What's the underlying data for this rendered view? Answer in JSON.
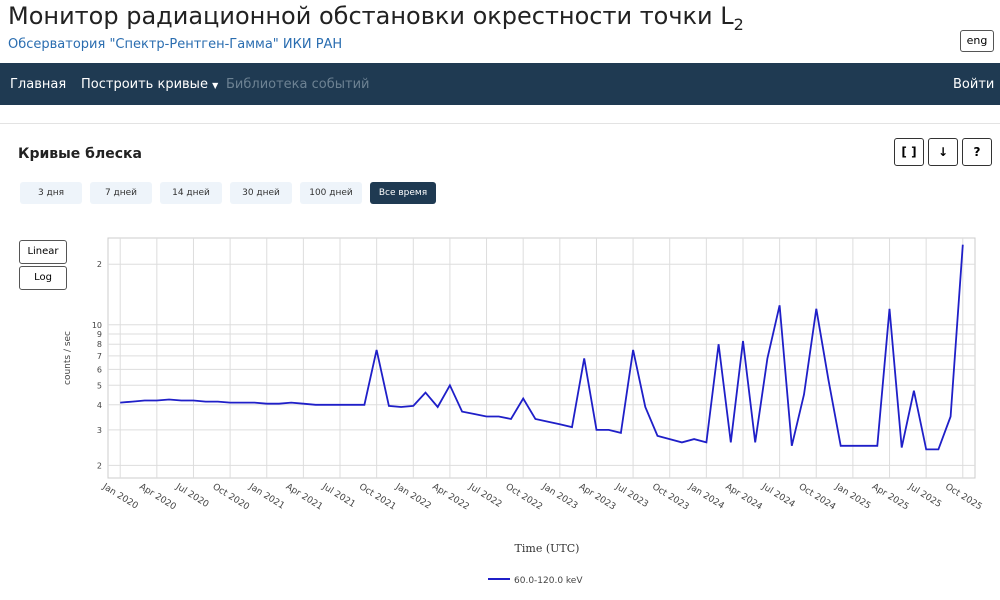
{
  "header": {
    "title": "Монитор радиационной обстановки окрестности точки L",
    "title_sub": "2",
    "subtitle": "Обсерватория \"Спектр-Рентген-Гамма\" ИКИ РАН",
    "lang_button": "eng"
  },
  "nav": {
    "items": [
      "Главная",
      "Построить кривые",
      "Библиотека событий"
    ],
    "login": "Войти"
  },
  "panel": {
    "title": "Кривые блеска",
    "tools": [
      "[ ]",
      "↓",
      "?"
    ],
    "ranges": [
      "3 дня",
      "7 дней",
      "14 дней",
      "30 дней",
      "100 дней",
      "Все время"
    ],
    "active_range": 5,
    "scales": [
      "Linear",
      "Log"
    ]
  },
  "chart_data": {
    "type": "line",
    "x_label": "Time (UTC)",
    "y_label": "counts / sec",
    "log_y": true,
    "grid": true,
    "xlim": [
      "2019-12",
      "2025-11"
    ],
    "xticks": [
      {
        "value": "2020-01",
        "label": "Jan 2020"
      },
      {
        "value": "2020-04",
        "label": "Apr 2020"
      },
      {
        "value": "2020-07",
        "label": "Jul 2020"
      },
      {
        "value": "2020-10",
        "label": "Oct 2020"
      },
      {
        "value": "2021-01",
        "label": "Jan 2021"
      },
      {
        "value": "2021-04",
        "label": "Apr 2021"
      },
      {
        "value": "2021-07",
        "label": "Jul 2021"
      },
      {
        "value": "2021-10",
        "label": "Oct 2021"
      },
      {
        "value": "2022-01",
        "label": "Jan 2022"
      },
      {
        "value": "2022-04",
        "label": "Apr 2022"
      },
      {
        "value": "2022-07",
        "label": "Jul 2022"
      },
      {
        "value": "2022-10",
        "label": "Oct 2022"
      },
      {
        "value": "2023-01",
        "label": "Jan 2023"
      },
      {
        "value": "2023-04",
        "label": "Apr 2023"
      },
      {
        "value": "2023-07",
        "label": "Jul 2023"
      },
      {
        "value": "2023-10",
        "label": "Oct 2023"
      },
      {
        "value": "2024-01",
        "label": "Jan 2024"
      },
      {
        "value": "2024-04",
        "label": "Apr 2024"
      },
      {
        "value": "2024-07",
        "label": "Jul 2024"
      },
      {
        "value": "2024-10",
        "label": "Oct 2024"
      },
      {
        "value": "2025-01",
        "label": "Jan 2025"
      },
      {
        "value": "2025-04",
        "label": "Apr 2025"
      },
      {
        "value": "2025-07",
        "label": "Jul 2025"
      },
      {
        "value": "2025-10",
        "label": "Oct 2025"
      }
    ],
    "ylim": [
      1.73,
      27
    ],
    "yticks": [
      2,
      3,
      4,
      5,
      6,
      7,
      8,
      9,
      10,
      {
        "value": 20,
        "label": "2"
      }
    ],
    "x": [
      "2020-01",
      "2020-02",
      "2020-03",
      "2020-04",
      "2020-05",
      "2020-06",
      "2020-07",
      "2020-08",
      "2020-09",
      "2020-10",
      "2020-11",
      "2020-12",
      "2021-01",
      "2021-02",
      "2021-03",
      "2021-04",
      "2021-05",
      "2021-06",
      "2021-07",
      "2021-08",
      "2021-09",
      "2021-10",
      "2021-11",
      "2021-12",
      "2022-01",
      "2022-02",
      "2022-03",
      "2022-04",
      "2022-05",
      "2022-06",
      "2022-07",
      "2022-08",
      "2022-09",
      "2022-10",
      "2022-11",
      "2022-12",
      "2023-01",
      "2023-02",
      "2023-03",
      "2023-04",
      "2023-05",
      "2023-06",
      "2023-07",
      "2023-08",
      "2023-09",
      "2023-10",
      "2023-11",
      "2023-12",
      "2024-01",
      "2024-02",
      "2024-03",
      "2024-04",
      "2024-05",
      "2024-06",
      "2024-07",
      "2024-08",
      "2024-09",
      "2024-10",
      "2024-11",
      "2024-12",
      "2025-01",
      "2025-02",
      "2025-03",
      "2025-04",
      "2025-05",
      "2025-06",
      "2025-07",
      "2025-08",
      "2025-09",
      "2025-10"
    ],
    "series": [
      {
        "name": "60.0-120.0 keV",
        "color": "#1f1fc8",
        "values": [
          4.1,
          4.15,
          4.2,
          4.2,
          4.25,
          4.2,
          4.2,
          4.15,
          4.15,
          4.1,
          4.1,
          4.1,
          4.05,
          4.05,
          4.1,
          4.05,
          4.0,
          4.0,
          4.0,
          4.0,
          4.0,
          7.5,
          3.95,
          3.9,
          3.95,
          4.6,
          3.9,
          5.0,
          3.7,
          3.6,
          3.5,
          3.5,
          3.4,
          4.3,
          3.4,
          3.3,
          3.2,
          3.1,
          6.8,
          3.0,
          3.0,
          2.9,
          7.5,
          3.9,
          2.8,
          2.7,
          2.6,
          2.7,
          2.6,
          8.0,
          2.6,
          8.3,
          2.6,
          6.8,
          12.5,
          2.5,
          4.5,
          12,
          5.3,
          2.5,
          2.5,
          2.5,
          2.5,
          12,
          2.45,
          4.7,
          2.4,
          2.4,
          3.5,
          25
        ]
      }
    ]
  }
}
